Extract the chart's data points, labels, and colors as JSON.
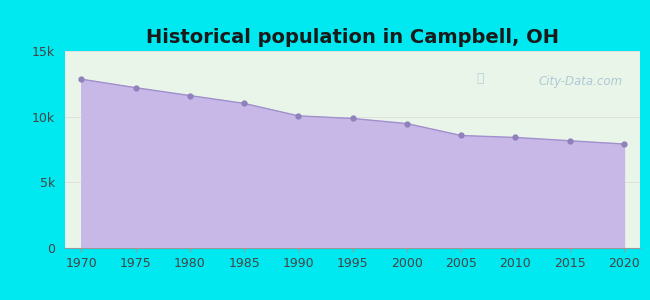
{
  "title": "Historical population in Campbell, OH",
  "years": [
    1970,
    1975,
    1980,
    1985,
    1990,
    1995,
    2000,
    2005,
    2010,
    2015,
    2020
  ],
  "population": [
    12850,
    12200,
    11600,
    11000,
    10050,
    9850,
    9460,
    8550,
    8400,
    8150,
    7900
  ],
  "fill_color": "#c8b8e8",
  "fill_alpha": 1.0,
  "line_color": "#a090cc",
  "marker_color": "#9080bb",
  "bg_color": "#eaf5ea",
  "outer_bg": "#00e8f0",
  "ylim": [
    0,
    15000
  ],
  "ytick_values": [
    0,
    5000,
    10000,
    15000
  ],
  "ytick_labels": [
    "0",
    "5k",
    "10k",
    "15k"
  ],
  "xlim": [
    1968.5,
    2021.5
  ],
  "title_fontsize": 14,
  "watermark": "City-Data.com"
}
